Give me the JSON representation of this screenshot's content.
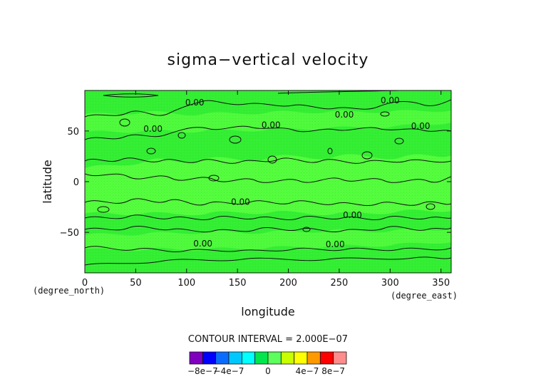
{
  "chart_data": {
    "type": "heatmap",
    "title": "sigma−vertical velocity",
    "xlabel": "longitude",
    "ylabel": "latitude",
    "x_unit": "(degree_east)",
    "y_unit": "(degree_north)",
    "xlim": [
      0,
      360
    ],
    "ylim": [
      -90,
      90
    ],
    "x_ticks": [
      0,
      50,
      100,
      150,
      200,
      250,
      300,
      350
    ],
    "x_tick_labels": [
      "0",
      "50",
      "100",
      "150",
      "200",
      "250",
      "300",
      "350"
    ],
    "y_ticks": [
      50,
      0,
      -50
    ],
    "y_tick_labels": [
      "50",
      "0",
      "−50"
    ],
    "contour_interval_text": "CONTOUR INTERVAL = 2.000E−07",
    "contour_labels": [
      {
        "text": "0.00",
        "lon": 108,
        "lat": 78
      },
      {
        "text": "0.00",
        "lon": 300,
        "lat": 80
      },
      {
        "text": "0.00",
        "lon": 67,
        "lat": 52
      },
      {
        "text": "0.00",
        "lon": 183,
        "lat": 56
      },
      {
        "text": "0.00",
        "lon": 255,
        "lat": 66
      },
      {
        "text": "0.00",
        "lon": 330,
        "lat": 55
      },
      {
        "text": "0.00",
        "lon": 153,
        "lat": -20
      },
      {
        "text": "0.00",
        "lon": 263,
        "lat": -33
      },
      {
        "text": "0.00",
        "lon": 246,
        "lat": -62
      },
      {
        "text": "0.00",
        "lon": 116,
        "lat": -61
      }
    ],
    "colorbar": {
      "labels": [
        "−8e−7",
        "−4e−7",
        "0",
        "4e−7",
        "8e−7"
      ],
      "colors": [
        "#7f00bf",
        "#0000ff",
        "#0a6cff",
        "#00c8ff",
        "#00ffff",
        "#00e64c",
        "#5cff5c",
        "#c8ff00",
        "#ffff00",
        "#ff9900",
        "#ff0000",
        "#ff8c8c"
      ]
    },
    "field_colors": {
      "dominant": "#33ee33",
      "band": "#5cff40",
      "contour_line": "#111111"
    },
    "grid": false
  }
}
